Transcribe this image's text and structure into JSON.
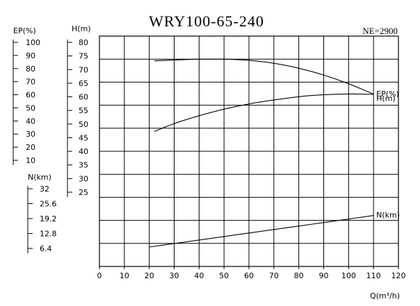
{
  "chart_data": {
    "type": "line",
    "title": "WRY100-65-240",
    "note": "NE=2900",
    "xlabel": "Q(m³/h)",
    "x_ticks": [
      "0",
      "10",
      "20",
      "30",
      "40",
      "50",
      "60",
      "70",
      "80",
      "90",
      "100",
      "110",
      "120"
    ],
    "xlim": [
      0,
      120
    ],
    "axes": {
      "EP": {
        "label": "EP(%)",
        "ticks": [
          "100",
          "90",
          "80",
          "70",
          "60",
          "50",
          "40",
          "30",
          "20",
          "10"
        ],
        "range": [
          10,
          100
        ]
      },
      "H": {
        "label": "H(m)",
        "ticks": [
          "80",
          "75",
          "70",
          "65",
          "60",
          "55",
          "50",
          "45",
          "40",
          "35",
          "30",
          "25"
        ],
        "range": [
          25,
          80
        ]
      },
      "N": {
        "label": "N(km)",
        "ticks": [
          "32",
          "25.6",
          "19.2",
          "12.8",
          "6.4"
        ],
        "range": [
          6.4,
          32
        ]
      }
    },
    "series": [
      {
        "name": "H(m)",
        "axis": "H",
        "label": "H(m)",
        "x": [
          22,
          30,
          40,
          50,
          60,
          70,
          80,
          90,
          100,
          110
        ],
        "y": [
          73.2,
          73.5,
          73.8,
          73.8,
          73.4,
          72.3,
          70.5,
          68.0,
          64.8,
          61.0
        ]
      },
      {
        "name": "EP(%)",
        "axis": "EP",
        "label": "EP(%)",
        "x": [
          22,
          30,
          40,
          50,
          60,
          70,
          80,
          90,
          100,
          110
        ],
        "y": [
          32,
          38,
          44,
          49,
          53,
          56,
          58.5,
          60,
          60.6,
          60.3
        ]
      },
      {
        "name": "N(km)",
        "axis": "N",
        "label": "N(km)",
        "x": [
          20,
          30,
          40,
          50,
          60,
          70,
          80,
          90,
          100,
          110
        ],
        "y": [
          7.0,
          8.5,
          10.0,
          11.5,
          13.0,
          14.5,
          16.0,
          17.5,
          19.0,
          20.5
        ]
      }
    ]
  }
}
